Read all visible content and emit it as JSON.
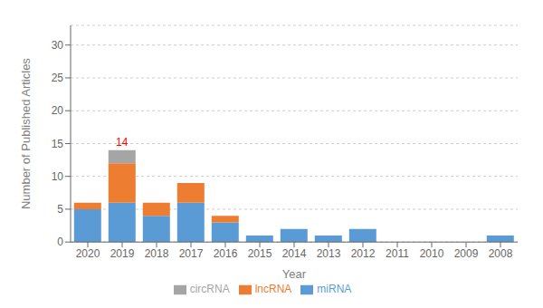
{
  "chart_data": {
    "type": "bar",
    "stacked": true,
    "categories": [
      "2020",
      "2019",
      "2018",
      "2017",
      "2016",
      "2015",
      "2014",
      "2013",
      "2012",
      "2011",
      "2010",
      "2009",
      "2008"
    ],
    "series": [
      {
        "name": "miRNA",
        "color": "#5B9BD5",
        "values": [
          5,
          6,
          4,
          6,
          3,
          1,
          2,
          1,
          2,
          0,
          0,
          0,
          1
        ]
      },
      {
        "name": "lncRNA",
        "color": "#ED7D31",
        "values": [
          1,
          6,
          2,
          3,
          1,
          0,
          0,
          0,
          0,
          0,
          0,
          0,
          0
        ]
      },
      {
        "name": "circRNA",
        "color": "#A5A5A5",
        "values": [
          0,
          2,
          0,
          0,
          0,
          0,
          0,
          0,
          0,
          0,
          0,
          0,
          0
        ]
      }
    ],
    "totals": {
      "values": [
        6,
        14,
        6,
        9,
        4,
        1,
        2,
        1,
        2,
        0,
        0,
        0,
        1
      ],
      "color": "#FF0000"
    },
    "x_label": "Year",
    "y_label": "Number of Published Articles",
    "ylim": [
      0,
      33
    ],
    "yticks": [
      0,
      5,
      10,
      15,
      20,
      25,
      30
    ],
    "grid": true,
    "legend": "bottom"
  }
}
